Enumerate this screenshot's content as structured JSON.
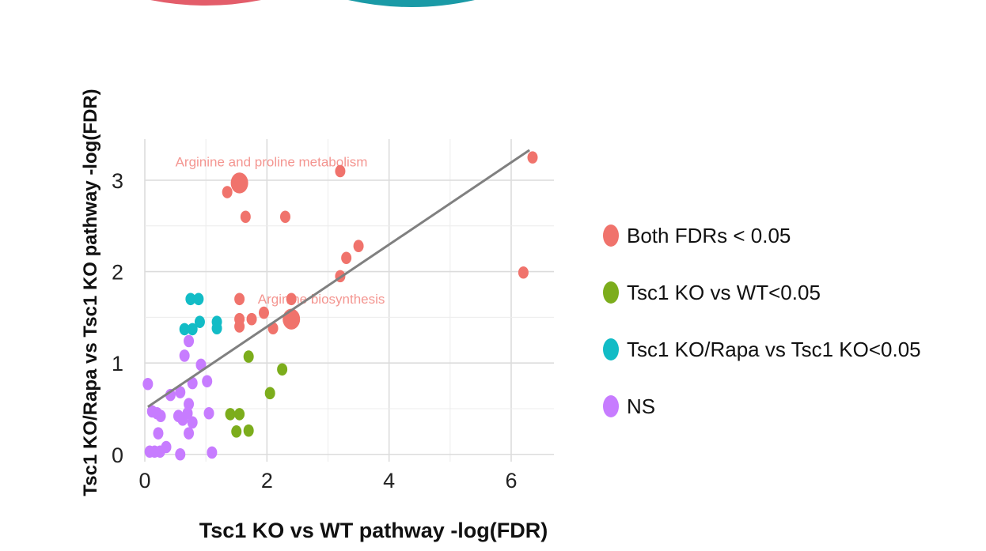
{
  "chart_data": {
    "type": "scatter",
    "xlabel": "Tsc1 KO vs WT pathway -log(FDR)",
    "ylabel": "Tsc1 KO/Rapa vs Tsc1 KO pathway -log(FDR)",
    "xlim": [
      0,
      6.7
    ],
    "ylim": [
      -0.08,
      3.45
    ],
    "xticks": [
      "0",
      "2",
      "4",
      "6"
    ],
    "yticks": [
      "0",
      "1",
      "2",
      "3"
    ],
    "grid": true,
    "legend_position": "right",
    "trendline": {
      "x": [
        0.05,
        6.3
      ],
      "y": [
        0.52,
        3.33
      ],
      "color": "#808080"
    },
    "annotations": [
      {
        "text": "Arginine and proline metabolism",
        "x": 0.5,
        "y": 3.15
      },
      {
        "text": "Arginine biosynthesis",
        "x": 1.85,
        "y": 1.65
      }
    ],
    "series": [
      {
        "name": "Both FDRs < 0.05",
        "color": "#f0736c",
        "points": [
          {
            "x": 1.55,
            "y": 2.97,
            "big": true
          },
          {
            "x": 1.35,
            "y": 2.87
          },
          {
            "x": 1.65,
            "y": 2.6
          },
          {
            "x": 2.3,
            "y": 2.6
          },
          {
            "x": 3.2,
            "y": 3.1
          },
          {
            "x": 6.35,
            "y": 3.25
          },
          {
            "x": 3.5,
            "y": 2.28
          },
          {
            "x": 3.3,
            "y": 2.15
          },
          {
            "x": 3.2,
            "y": 1.95
          },
          {
            "x": 6.2,
            "y": 1.99
          },
          {
            "x": 1.55,
            "y": 1.7
          },
          {
            "x": 2.4,
            "y": 1.7
          },
          {
            "x": 1.55,
            "y": 1.48
          },
          {
            "x": 1.75,
            "y": 1.48
          },
          {
            "x": 1.55,
            "y": 1.4
          },
          {
            "x": 2.1,
            "y": 1.38
          },
          {
            "x": 1.95,
            "y": 1.55
          },
          {
            "x": 2.4,
            "y": 1.48,
            "big": true
          }
        ]
      },
      {
        "name": "Tsc1 KO vs WT<0.05",
        "color": "#7cad1c",
        "points": [
          {
            "x": 1.7,
            "y": 1.07
          },
          {
            "x": 2.25,
            "y": 0.93
          },
          {
            "x": 2.05,
            "y": 0.67
          },
          {
            "x": 1.4,
            "y": 0.44
          },
          {
            "x": 1.55,
            "y": 0.44
          },
          {
            "x": 1.5,
            "y": 0.25
          },
          {
            "x": 1.7,
            "y": 0.26
          }
        ]
      },
      {
        "name": "Tsc1 KO/Rapa vs Tsc1 KO<0.05",
        "color": "#12bcc6",
        "points": [
          {
            "x": 0.75,
            "y": 1.7
          },
          {
            "x": 0.88,
            "y": 1.7
          },
          {
            "x": 0.65,
            "y": 1.37
          },
          {
            "x": 0.78,
            "y": 1.37
          },
          {
            "x": 0.9,
            "y": 1.45
          },
          {
            "x": 1.18,
            "y": 1.45
          },
          {
            "x": 1.18,
            "y": 1.38
          }
        ]
      },
      {
        "name": "NS",
        "color": "#c77cff",
        "points": [
          {
            "x": 0.72,
            "y": 1.24
          },
          {
            "x": 0.65,
            "y": 1.08
          },
          {
            "x": 0.92,
            "y": 0.98
          },
          {
            "x": 0.05,
            "y": 0.77
          },
          {
            "x": 0.78,
            "y": 0.78
          },
          {
            "x": 1.02,
            "y": 0.8
          },
          {
            "x": 0.42,
            "y": 0.65
          },
          {
            "x": 0.58,
            "y": 0.68
          },
          {
            "x": 0.72,
            "y": 0.55
          },
          {
            "x": 0.12,
            "y": 0.47
          },
          {
            "x": 0.2,
            "y": 0.45
          },
          {
            "x": 0.26,
            "y": 0.42
          },
          {
            "x": 0.55,
            "y": 0.42
          },
          {
            "x": 0.62,
            "y": 0.38
          },
          {
            "x": 0.7,
            "y": 0.45
          },
          {
            "x": 0.78,
            "y": 0.35
          },
          {
            "x": 1.05,
            "y": 0.45
          },
          {
            "x": 0.22,
            "y": 0.23
          },
          {
            "x": 0.72,
            "y": 0.23
          },
          {
            "x": 0.35,
            "y": 0.08
          },
          {
            "x": 0.08,
            "y": 0.03
          },
          {
            "x": 0.16,
            "y": 0.03
          },
          {
            "x": 0.25,
            "y": 0.03
          },
          {
            "x": 0.58,
            "y": 0.0
          },
          {
            "x": 1.1,
            "y": 0.02
          }
        ]
      }
    ]
  }
}
